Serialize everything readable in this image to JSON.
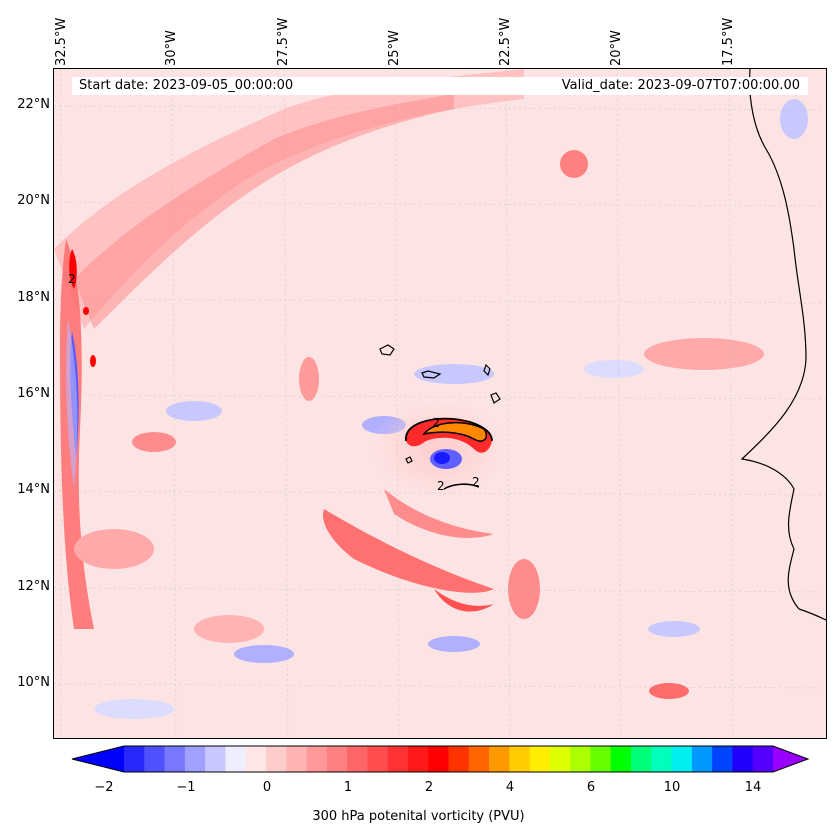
{
  "header": {
    "start_date": "Start date: 2023-09-05_00:00:00",
    "valid_date": "Valid_date: 2023-09-07T07:00:00.00"
  },
  "axes": {
    "longitude_labels": [
      "32.5°W",
      "30°W",
      "27.5°W",
      "25°W",
      "22.5°W",
      "20°W",
      "17.5°W"
    ],
    "latitude_labels": [
      "22°N",
      "20°N",
      "18°N",
      "16°N",
      "14°N",
      "12°N",
      "10°N"
    ]
  },
  "map": {
    "contour_labels": [
      "2",
      "2",
      "2",
      "2"
    ],
    "features": [
      "cape-verde-islands",
      "west-africa-coastline",
      "potential-vorticity-anomaly"
    ]
  },
  "colorbar": {
    "tick_labels": [
      "−2",
      "−1",
      "0",
      "1",
      "2",
      "4",
      "6",
      "10",
      "14"
    ],
    "label": "300 hPa potenital vorticity (PVU)",
    "colors": [
      "#0000ff",
      "#2828ff",
      "#5050ff",
      "#7878ff",
      "#a0a0ff",
      "#c8c8ff",
      "#eeeeff",
      "#ffe6e6",
      "#ffcccc",
      "#ffb3b3",
      "#ff9999",
      "#ff8080",
      "#ff6666",
      "#ff4d4d",
      "#ff3333",
      "#ff1a1a",
      "#ff0000",
      "#ff3300",
      "#ff6600",
      "#ff9900",
      "#ffcc00",
      "#ffee00",
      "#ddff00",
      "#aaff00",
      "#66ff00",
      "#00ff00",
      "#00ff77",
      "#00ffbb",
      "#00eeee",
      "#0099ff",
      "#0044ff",
      "#2200ff",
      "#5500ff",
      "#9900ff"
    ]
  }
}
